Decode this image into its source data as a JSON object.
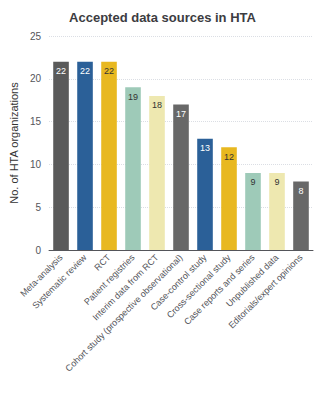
{
  "chart_data": {
    "type": "bar",
    "title": "Accepted data sources in HTA",
    "ylabel": "No. of HTA organizations",
    "categories": [
      "Meta-analysis",
      "Systematic review",
      "RCT",
      "Patient registries",
      "Interim data from RCT",
      "Cohort study (prospective observational)",
      "Case-control study",
      "Cross-sectional study",
      "Case reports and series",
      "Unpublished data",
      "Editorials/expert opinions"
    ],
    "values": [
      22,
      22,
      22,
      19,
      18,
      17,
      13,
      12,
      9,
      9,
      8
    ],
    "colors": [
      "#5a5a5a",
      "#2b6098",
      "#e8b820",
      "#9ecab8",
      "#eee8b0",
      "#686868",
      "#2b6098",
      "#e8b820",
      "#9ecab8",
      "#eee8b0",
      "#686868"
    ],
    "ylim": [
      0,
      25
    ],
    "yticks": [
      0,
      5,
      10,
      15,
      20,
      25
    ],
    "grid": true,
    "data_labels": true
  }
}
